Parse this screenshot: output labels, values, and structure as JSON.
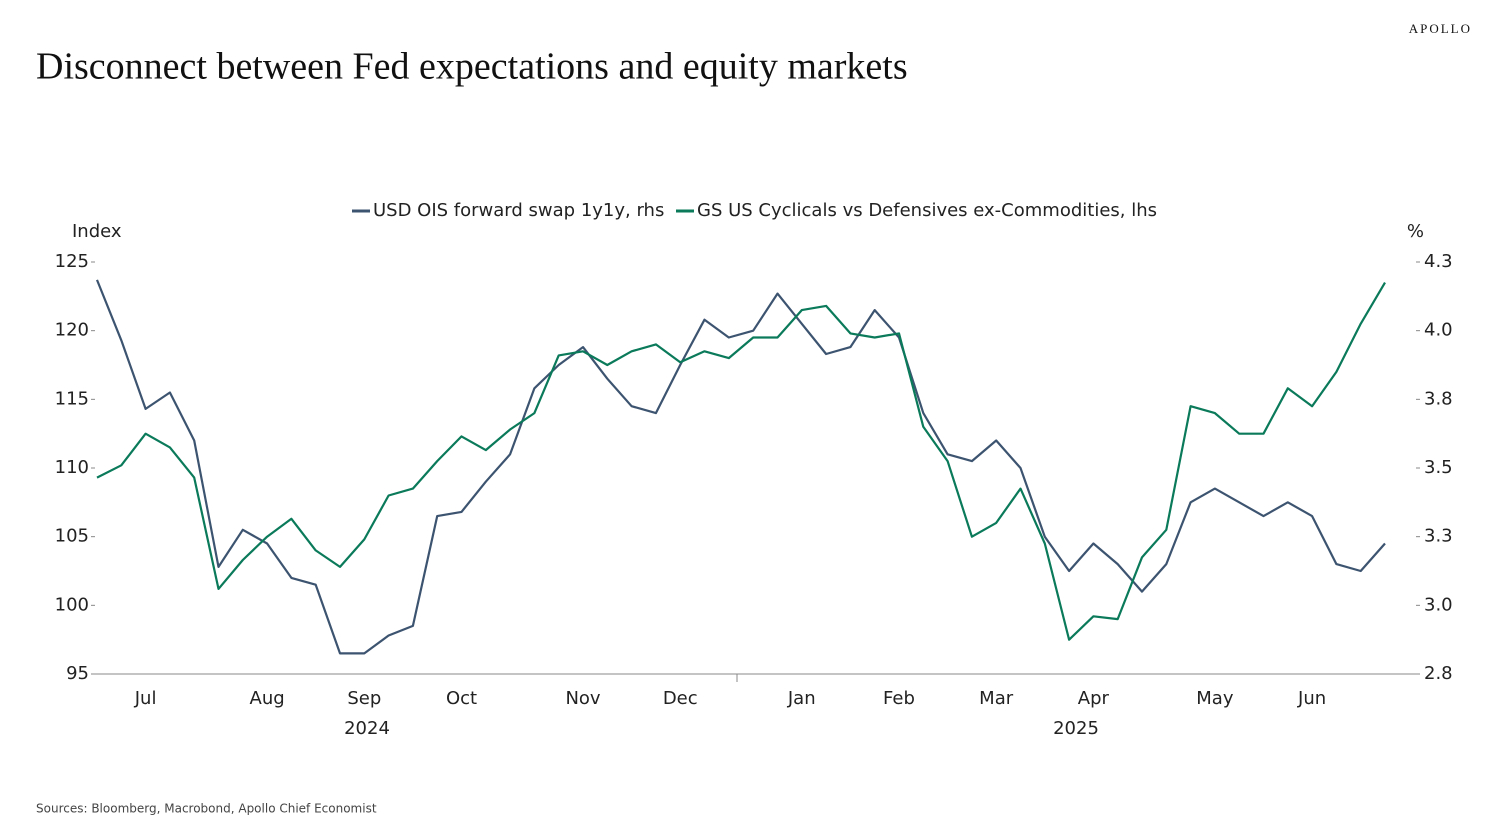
{
  "brand": "APOLLO",
  "source": "Sources: Bloomberg, Macrobond, Apollo Chief Economist",
  "chart_data": {
    "type": "line",
    "title": "Disconnect between Fed expectations and equity markets",
    "y_axis_label": "Index",
    "y2_axis_label": "%",
    "categories": [
      null,
      null,
      "Jul",
      null,
      null,
      null,
      null,
      "Aug",
      null,
      null,
      null,
      "Sep",
      null,
      null,
      null,
      "Oct",
      null,
      null,
      null,
      null,
      "Nov",
      null,
      null,
      null,
      "Dec",
      null,
      null,
      null,
      null,
      "Jan",
      null,
      null,
      null,
      "Feb",
      null,
      null,
      null,
      "Mar",
      null,
      null,
      null,
      "Apr",
      null,
      null,
      null,
      null,
      "May",
      null,
      null,
      null,
      "Jun",
      null,
      null,
      null
    ],
    "x_group_labels": [
      "2024",
      "2025"
    ],
    "ylim": [
      95,
      125
    ],
    "yticks": [
      95,
      100,
      105,
      110,
      115,
      120,
      125
    ],
    "y2lim": [
      2.8,
      4.3
    ],
    "y2ticks": [
      {
        "value": 2.8,
        "label": "2.8"
      },
      {
        "value": 3.05,
        "label": "3.0"
      },
      {
        "value": 3.3,
        "label": "3.3"
      },
      {
        "value": 3.55,
        "label": "3.5"
      },
      {
        "value": 3.8,
        "label": "3.8"
      },
      {
        "value": 4.05,
        "label": "4.0"
      },
      {
        "value": 4.3,
        "label": "4.3"
      }
    ],
    "series": [
      {
        "name": "USD OIS forward swap 1y1y, rhs",
        "color": "#3d5470",
        "axis": "y2",
        "values": [
          4.235,
          4.015,
          3.765,
          3.825,
          3.65,
          3.19,
          3.325,
          3.275,
          3.15,
          3.125,
          2.875,
          2.875,
          2.94,
          2.975,
          3.375,
          3.39,
          3.5,
          3.6,
          3.84,
          3.925,
          3.99,
          3.875,
          3.775,
          3.75,
          3.925,
          4.09,
          4.025,
          4.05,
          4.185,
          4.075,
          3.965,
          3.99,
          4.125,
          4.025,
          3.75,
          3.6,
          3.575,
          3.65,
          3.55,
          3.3,
          3.175,
          3.275,
          3.2,
          3.1,
          3.2,
          3.425,
          3.475,
          3.425,
          3.375,
          3.425,
          3.375,
          3.2,
          3.175,
          3.275
        ]
      },
      {
        "name": "GS US Cyclicals vs Defensives ex-Commodities, lhs",
        "color": "#0a7a5a",
        "values": [
          109.3,
          110.2,
          112.5,
          111.5,
          109.3,
          101.2,
          103.3,
          105,
          106.3,
          104,
          102.8,
          104.8,
          108,
          108.5,
          110.5,
          112.3,
          111.3,
          112.8,
          114,
          118.2,
          118.5,
          117.5,
          118.5,
          119,
          117.7,
          118.5,
          118,
          119.5,
          119.5,
          121.5,
          121.8,
          119.8,
          119.5,
          119.8,
          113,
          110.5,
          105,
          106,
          108.5,
          104.5,
          97.5,
          99.2,
          99,
          103.5,
          105.5,
          114.5,
          114,
          112.5,
          112.5,
          115.8,
          114.5,
          117,
          120.5,
          123.5
        ]
      }
    ]
  }
}
